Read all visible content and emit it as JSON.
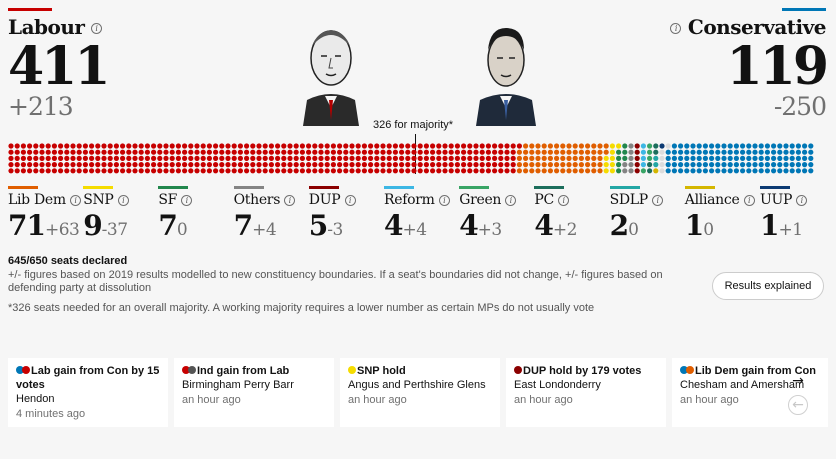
{
  "labour": {
    "name": "Labour",
    "seats": "411",
    "change": "+213",
    "color": "#c70000"
  },
  "conservative": {
    "name": "Conservative",
    "seats": "119",
    "change": "-250",
    "color": "#0077b6"
  },
  "majority_label": "326 for majority*",
  "parties": [
    {
      "name": "Lib Dem",
      "seats": "71",
      "change": "+63",
      "color": "#e05e00"
    },
    {
      "name": "SNP",
      "seats": "9",
      "change": "-37",
      "color": "#f5dc00"
    },
    {
      "name": "SF",
      "seats": "7",
      "change": "0",
      "color": "#22874d"
    },
    {
      "name": "Others",
      "seats": "7",
      "change": "+4",
      "color": "#848484"
    },
    {
      "name": "DUP",
      "seats": "5",
      "change": "-3",
      "color": "#8b0000"
    },
    {
      "name": "Reform",
      "seats": "4",
      "change": "+4",
      "color": "#3db7e4"
    },
    {
      "name": "Green",
      "seats": "4",
      "change": "+3",
      "color": "#39a566"
    },
    {
      "name": "PC",
      "seats": "4",
      "change": "+2",
      "color": "#1c6e5c"
    },
    {
      "name": "SDLP",
      "seats": "2",
      "change": "0",
      "color": "#23a7a5"
    },
    {
      "name": "Alliance",
      "seats": "1",
      "change": "0",
      "color": "#d4b600"
    },
    {
      "name": "UUP",
      "seats": "1",
      "change": "+1",
      "color": "#0c3a73"
    }
  ],
  "seat_blocks": [
    {
      "party": "Labour",
      "count": 411,
      "color": "#c70000"
    },
    {
      "party": "Lib Dem",
      "count": 71,
      "color": "#e05e00"
    },
    {
      "party": "SNP",
      "count": 9,
      "color": "#f5dc00"
    },
    {
      "party": "SF",
      "count": 7,
      "color": "#22874d"
    },
    {
      "party": "Others",
      "count": 7,
      "color": "#848484"
    },
    {
      "party": "DUP",
      "count": 5,
      "color": "#8b0000"
    },
    {
      "party": "Reform",
      "count": 4,
      "color": "#3db7e4"
    },
    {
      "party": "Green",
      "count": 4,
      "color": "#39a566"
    },
    {
      "party": "PC",
      "count": 4,
      "color": "#1c6e5c"
    },
    {
      "party": "SDLP",
      "count": 2,
      "color": "#23a7a5"
    },
    {
      "party": "Alliance",
      "count": 1,
      "color": "#d4b600"
    },
    {
      "party": "UUP",
      "count": 1,
      "color": "#0c3a73"
    },
    {
      "party": "Undeclared",
      "count": 5,
      "color": "#dcdcdc"
    },
    {
      "party": "Conservative",
      "count": 119,
      "color": "#0077b6"
    }
  ],
  "seats_declared": "645/650 seats declared",
  "notes": {
    "note1": "+/- figures based on 2019 results modelled to new constituency boundaries. If a seat's boundaries did not change, +/- figures based on defending party at dissolution",
    "note2": "*326 seats needed for an overall majority. A working majority requires a lower number as certain MPs do not usually vote"
  },
  "results_button": "Results explained",
  "cards": [
    {
      "headline": "Lab gain from Con by 15 votes",
      "place": "Hendon",
      "time": "4 minutes ago",
      "dots": [
        "#0077b6",
        "#c70000"
      ]
    },
    {
      "headline": "Ind gain from Lab",
      "place": "Birmingham Perry Barr",
      "time": "an hour ago",
      "dots": [
        "#c70000",
        "#555555"
      ]
    },
    {
      "headline": "SNP hold",
      "place": "Angus and Perthshire Glens",
      "time": "an hour ago",
      "dots": [
        "#f5dc00"
      ]
    },
    {
      "headline": "DUP hold by 179 votes",
      "place": "East Londonderry",
      "time": "an hour ago",
      "dots": [
        "#8b0000"
      ]
    },
    {
      "headline": "Lib Dem gain from Con",
      "place": "Chesham and Amersham",
      "time": "an hour ago",
      "dots": [
        "#0077b6",
        "#e05e00"
      ]
    }
  ],
  "icons": {
    "info": "info-icon",
    "next": "arrow-right-icon",
    "prev": "arrow-left-icon"
  }
}
